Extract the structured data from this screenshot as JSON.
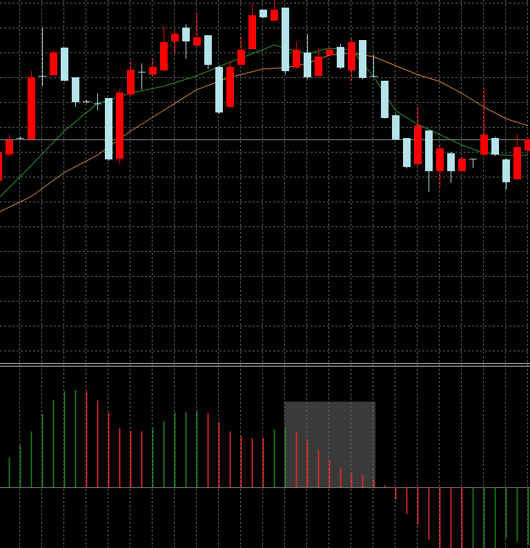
{
  "chart_data": [
    {
      "type": "candlestick",
      "xlim": [
        0.19,
        48.19
      ],
      "xticks": [
        2,
        4,
        6,
        8,
        10,
        12,
        14,
        16,
        18,
        20,
        22,
        24,
        26,
        28,
        30,
        32,
        34,
        36,
        38,
        40,
        42,
        44,
        46,
        48
      ],
      "ylim": [
        0,
        528
      ],
      "yticks": [
        524,
        488,
        452,
        416,
        380,
        344,
        308,
        272,
        236,
        200,
        164,
        128,
        92,
        56,
        20
      ],
      "grid": true,
      "up_color": "#ff0000",
      "down_color": "#b4e4ea",
      "hline": 326,
      "open": [
        266,
        304,
        328,
        326,
        418,
        419,
        459,
        416,
        381,
        378,
        386,
        298,
        391,
        424,
        420,
        426,
        468,
        488,
        462,
        477,
        431,
        373,
        434,
        457,
        514,
        498,
        517,
        430,
        452,
        418,
        448,
        460,
        426,
        470,
        418,
        411,
        361,
        328,
        290,
        339,
        280,
        306,
        280,
        298,
        304,
        328,
        297,
        268,
        310
      ],
      "high": [
        313,
        333,
        330,
        425,
        488,
        455,
        459,
        416,
        383,
        393,
        386,
        398,
        440,
        436,
        443,
        490,
        483,
        493,
        508,
        477,
        433,
        440,
        476,
        523,
        514,
        528,
        517,
        468,
        478,
        458,
        458,
        465,
        473,
        470,
        448,
        411,
        363,
        328,
        373,
        339,
        318,
        308,
        300,
        298,
        400,
        330,
        298,
        333,
        328
      ],
      "low": [
        263,
        301,
        326,
        326,
        403,
        418,
        410,
        373,
        379,
        368,
        295,
        290,
        389,
        398,
        418,
        425,
        450,
        443,
        462,
        428,
        363,
        371,
        434,
        457,
        502,
        498,
        420,
        428,
        414,
        416,
        446,
        428,
        410,
        413,
        416,
        356,
        325,
        284,
        288,
        250,
        256,
        263,
        279,
        285,
        302,
        302,
        253,
        268,
        308
      ],
      "close": [
        308,
        325,
        328,
        416,
        418,
        452,
        411,
        380,
        381,
        378,
        297,
        394,
        427,
        424,
        431,
        467,
        479,
        468,
        474,
        434,
        365,
        431,
        456,
        506,
        503,
        514,
        425,
        456,
        416,
        446,
        456,
        430,
        467,
        415,
        418,
        357,
        326,
        286,
        346,
        280,
        313,
        280,
        298,
        298,
        333,
        304,
        264,
        315,
        326
      ],
      "lines": [
        {
          "color": "#2fa82f",
          "x": [
            0,
            3,
            6,
            9,
            12,
            15,
            18,
            21,
            24,
            25,
            26,
            28,
            30,
            32,
            34,
            36,
            38,
            40,
            42,
            44,
            46,
            48
          ],
          "values": [
            240,
            288,
            338,
            378,
            393,
            403,
            418,
            438,
            456,
            463,
            458,
            450,
            458,
            456,
            418,
            368,
            348,
            333,
            318,
            306,
            303,
            303
          ]
        },
        {
          "color": "#f0963c",
          "x": [
            0,
            3,
            6,
            9,
            12,
            15,
            18,
            21,
            24,
            25,
            26,
            28,
            30,
            32,
            34,
            36,
            38,
            40,
            42,
            44,
            46,
            48
          ],
          "values": [
            220,
            243,
            278,
            303,
            338,
            368,
            398,
            416,
            428,
            429,
            430,
            436,
            448,
            451,
            446,
            433,
            420,
            410,
            393,
            373,
            356,
            346
          ]
        }
      ]
    },
    {
      "type": "histogram-bars",
      "xlim": [
        0.19,
        48.19
      ],
      "ylim": [
        -88,
        176
      ],
      "yticks": [
        0
      ],
      "x": [
        1,
        2,
        3,
        4,
        5,
        6,
        7,
        8,
        9,
        10,
        11,
        12,
        13,
        14,
        15,
        16,
        17,
        18,
        19,
        20,
        21,
        22,
        23,
        24,
        25,
        26,
        27,
        28,
        29,
        30,
        31,
        32,
        33,
        34,
        35,
        36,
        37,
        38,
        39,
        40,
        41,
        42,
        43,
        44,
        45,
        46,
        47,
        48
      ],
      "values": [
        43,
        61,
        81,
        106,
        126,
        139,
        141,
        139,
        126,
        108,
        86,
        81,
        81,
        86,
        96,
        108,
        109,
        111,
        108,
        94,
        81,
        74,
        71,
        72,
        84,
        86,
        80,
        69,
        54,
        39,
        28,
        20,
        18,
        11,
        3,
        -18,
        -39,
        -54,
        -76,
        -88,
        -88,
        -88,
        -88,
        -88,
        -88,
        -74,
        -79,
        -84
      ],
      "colors": [
        "#1c8c1c",
        "#1c8c1c",
        "#1c8c1c",
        "#1c8c1c",
        "#1c8c1c",
        "#1c8c1c",
        "#1c8c1c",
        "#ff2a2a",
        "#ff2a2a",
        "#ff2a2a",
        "#ff2a2a",
        "#ff2a2a",
        "#ff2a2a",
        "#1c8c1c",
        "#1c8c1c",
        "#1c8c1c",
        "#1c8c1c",
        "#1c8c1c",
        "#ff2a2a",
        "#ff2a2a",
        "#ff2a2a",
        "#ff2a2a",
        "#ff2a2a",
        "#ff2a2a",
        "#1c8c1c",
        "#1c8c1c",
        "#ff2a2a",
        "#ff2a2a",
        "#ff2a2a",
        "#ff2a2a",
        "#ff2a2a",
        "#ff2a2a",
        "#ff2a2a",
        "#ff2a2a",
        "#ff2a2a",
        "#ff2a2a",
        "#ff2a2a",
        "#ff2a2a",
        "#ff2a2a",
        "#ff2a2a",
        "#ff2a2a",
        "#ff2a2a",
        "#1c8c1c",
        "#1c8c1c",
        "#1c8c1c",
        "#1c8c1c",
        "#1c8c1c",
        "#1c8c1c"
      ]
    }
  ]
}
